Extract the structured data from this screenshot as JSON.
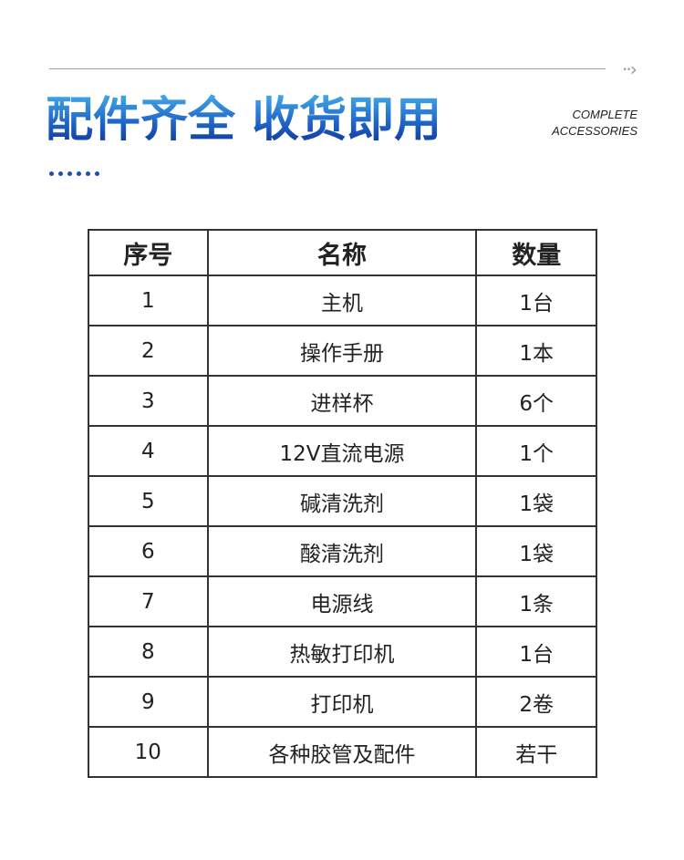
{
  "header": {
    "title": "配件齐全 收货即用",
    "subtitle_line1": "COMPLETE",
    "subtitle_line2": "ACCESSORIES",
    "arrow_icon": "double-chevron-right-icon",
    "accent": "#1f63c6"
  },
  "table": {
    "columns": [
      "序号",
      "名称",
      "数量"
    ],
    "rows": [
      [
        "1",
        "主机",
        "1台"
      ],
      [
        "2",
        "操作手册",
        "1本"
      ],
      [
        "3",
        "进样杯",
        "6个"
      ],
      [
        "4",
        "12V直流电源",
        "1个"
      ],
      [
        "5",
        "碱清洗剂",
        "1袋"
      ],
      [
        "6",
        "酸清洗剂",
        "1袋"
      ],
      [
        "7",
        "电源线",
        "1条"
      ],
      [
        "8",
        "热敏打印机",
        "1台"
      ],
      [
        "9",
        "打印机",
        "2卷"
      ],
      [
        "10",
        "各种胶管及配件",
        "若干"
      ]
    ]
  }
}
